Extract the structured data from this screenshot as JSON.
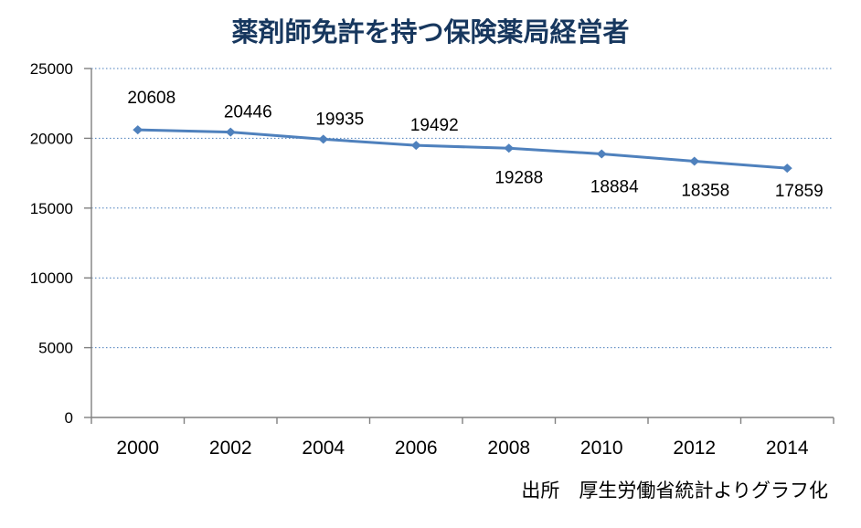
{
  "chart_data": {
    "type": "line",
    "title": "薬剤師免許を持つ保険薬局経営者",
    "categories": [
      "2000",
      "2002",
      "2004",
      "2006",
      "2008",
      "2010",
      "2012",
      "2014"
    ],
    "series": [
      {
        "name": "薬剤師免許を持つ保険薬局経営者",
        "values": [
          20608,
          20446,
          19935,
          19492,
          19288,
          18884,
          18358,
          17859
        ]
      }
    ],
    "data_labels_visible": true,
    "data_label_placements": [
      "above",
      "above",
      "above",
      "above",
      "below",
      "below",
      "below",
      "below"
    ],
    "xlabel": "",
    "ylabel": "",
    "ylim": [
      0,
      25000
    ],
    "yticks": [
      0,
      5000,
      10000,
      15000,
      20000,
      25000
    ],
    "grid": "horizontal-dotted",
    "legend_position": "none",
    "marker": "diamond",
    "source_note": "出所　厚生労働省統計よりグラフ化",
    "colors": {
      "title": "#17375E",
      "line": "#4F81BD",
      "marker": "#4F81BD",
      "gridline": "#4A7EBB",
      "axis": "#808080",
      "label_text": "#000000",
      "background": "#FFFFFF"
    }
  }
}
